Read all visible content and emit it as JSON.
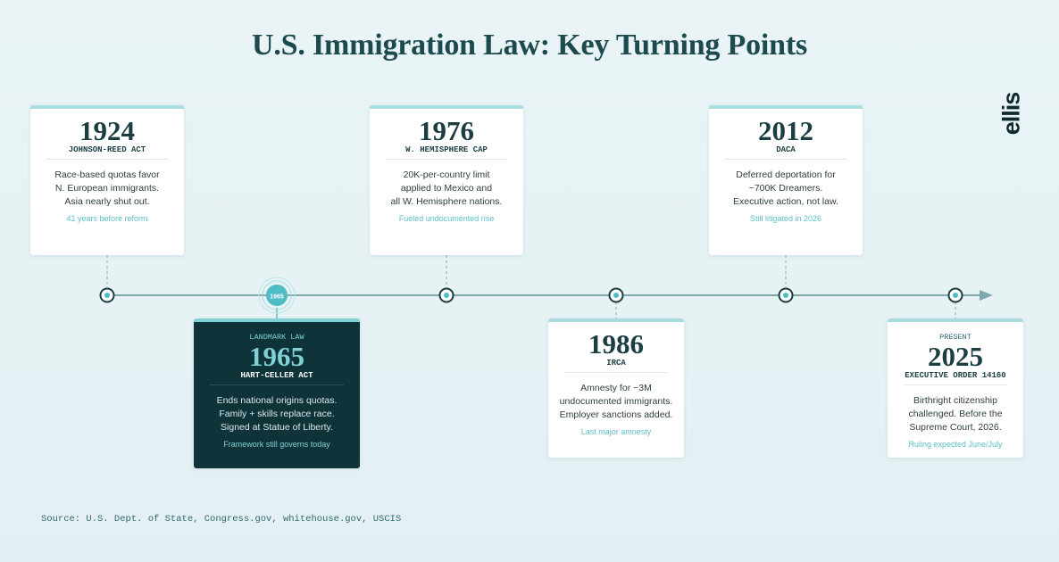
{
  "title": "U.S. Immigration Law: Key Turning Points",
  "logo": "ellis",
  "events": [
    {
      "year": "1924",
      "label": "JOHNSON-REED ACT",
      "description": [
        "Race-based quotas favor",
        "N. European immigrants.",
        "Asia nearly shut out."
      ],
      "note": "41 years before reform"
    },
    {
      "tag": "LANDMARK LAW",
      "year": "1965",
      "label": "HART-CELLER ACT",
      "description": [
        "Ends national origins quotas.",
        "Family + skills replace race.",
        "Signed at Statue of Liberty."
      ],
      "note": "Framework still governs today"
    },
    {
      "year": "1976",
      "label": "W. HEMISPHERE CAP",
      "description": [
        "20K-per-country limit",
        "applied to Mexico and",
        "all W. Hemisphere nations."
      ],
      "note": "Fueled undocumented rise"
    },
    {
      "year": "1986",
      "label": "IRCA",
      "description": [
        "Amnesty for ~3M",
        "undocumented immigrants.",
        "Employer sanctions added."
      ],
      "note": "Last major amnesty"
    },
    {
      "year": "2012",
      "label": "DACA",
      "description": [
        "Deferred deportation for",
        "~700K Dreamers.",
        "Executive action, not law."
      ],
      "note": "Still litigated in 2026"
    },
    {
      "tag": "PRESENT",
      "year": "2025",
      "label": "EXECUTIVE ORDER 14160",
      "description": [
        "Birthright citizenship",
        "challenged. Before the",
        "Supreme Court, 2026."
      ],
      "note": "Ruling expected June/July"
    }
  ],
  "source": "Source: U.S. Dept. of State, Congress.gov, whitehouse.gov, USCIS"
}
